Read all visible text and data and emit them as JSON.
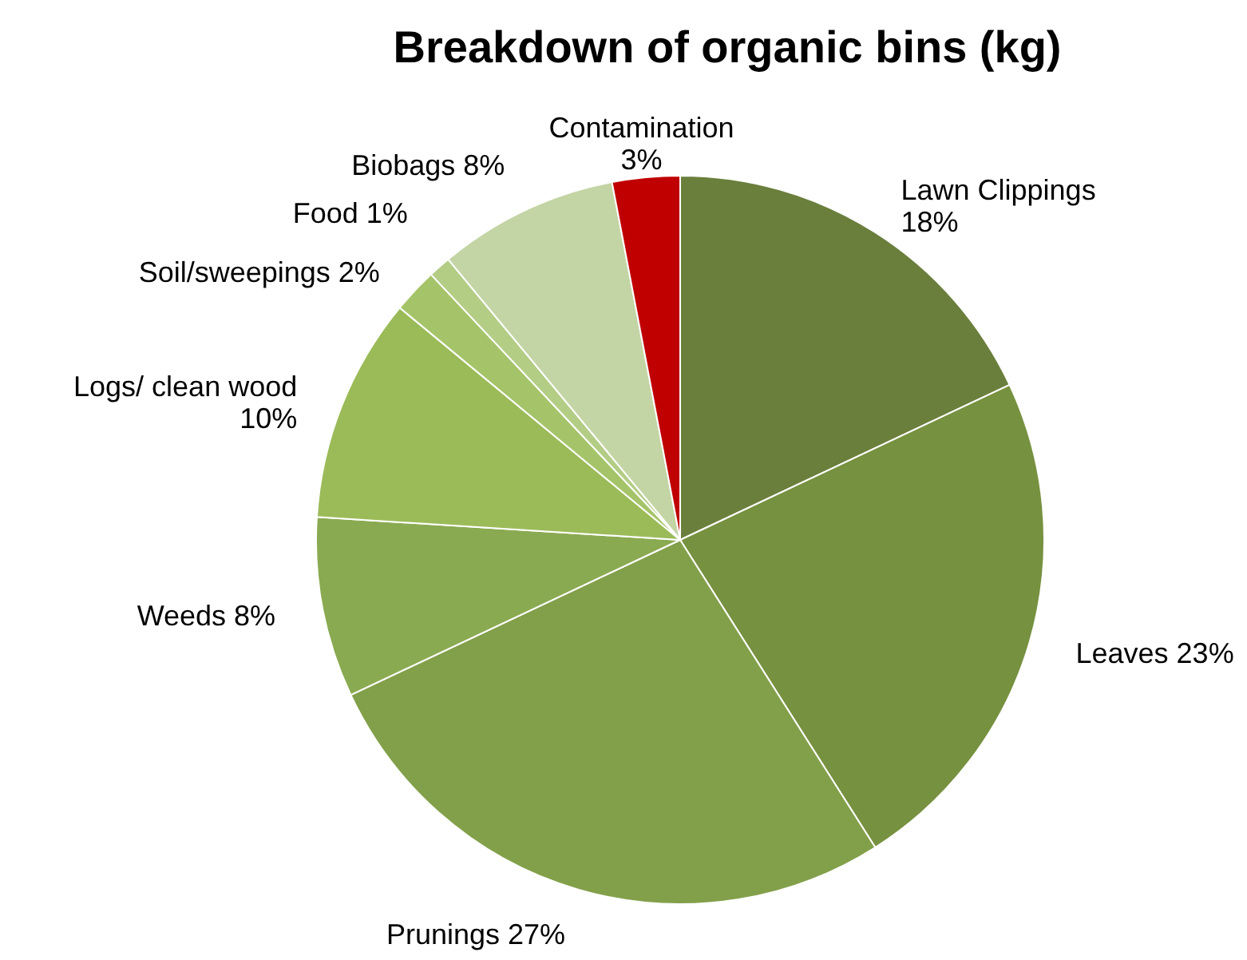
{
  "chart_data": {
    "type": "pie",
    "title": "Breakdown of organic bins (kg)",
    "categories": [
      "Lawn Clippings",
      "Leaves",
      "Prunings",
      "Weeds",
      "Logs/ clean wood",
      "Soil/sweepings",
      "Food",
      "Biobags",
      "Contamination"
    ],
    "values": [
      18,
      23,
      27,
      8,
      10,
      2,
      1,
      8,
      3
    ],
    "value_labels": [
      "18%",
      "23%",
      "27%",
      "8%",
      "10%",
      "2%",
      "1%",
      "8%",
      "3%"
    ],
    "colors": [
      "#6a7f3c",
      "#76913f",
      "#82a04a",
      "#8aaa51",
      "#9bbb59",
      "#a5c46a",
      "#b3cd85",
      "#c3d5a5",
      "#c00000"
    ]
  }
}
